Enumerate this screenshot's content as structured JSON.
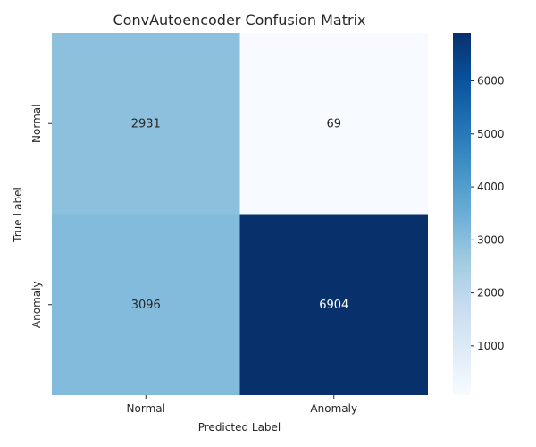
{
  "chart_data": {
    "type": "heatmap",
    "title": "ConvAutoencoder Confusion Matrix",
    "xlabel": "Predicted Label",
    "ylabel": "True Label",
    "x_categories": [
      "Normal",
      "Anomaly"
    ],
    "y_categories": [
      "Normal",
      "Anomaly"
    ],
    "values": [
      [
        2931,
        69
      ],
      [
        3096,
        6904
      ]
    ],
    "colormap": "Blues",
    "colorbar": {
      "ticks": [
        1000,
        2000,
        3000,
        4000,
        5000,
        6000
      ],
      "min": 69,
      "max": 6904
    },
    "colors": {
      "low": "#f7fbff",
      "high": "#08306b",
      "text_dark": "#262626",
      "text_light": "#ffffff"
    }
  }
}
